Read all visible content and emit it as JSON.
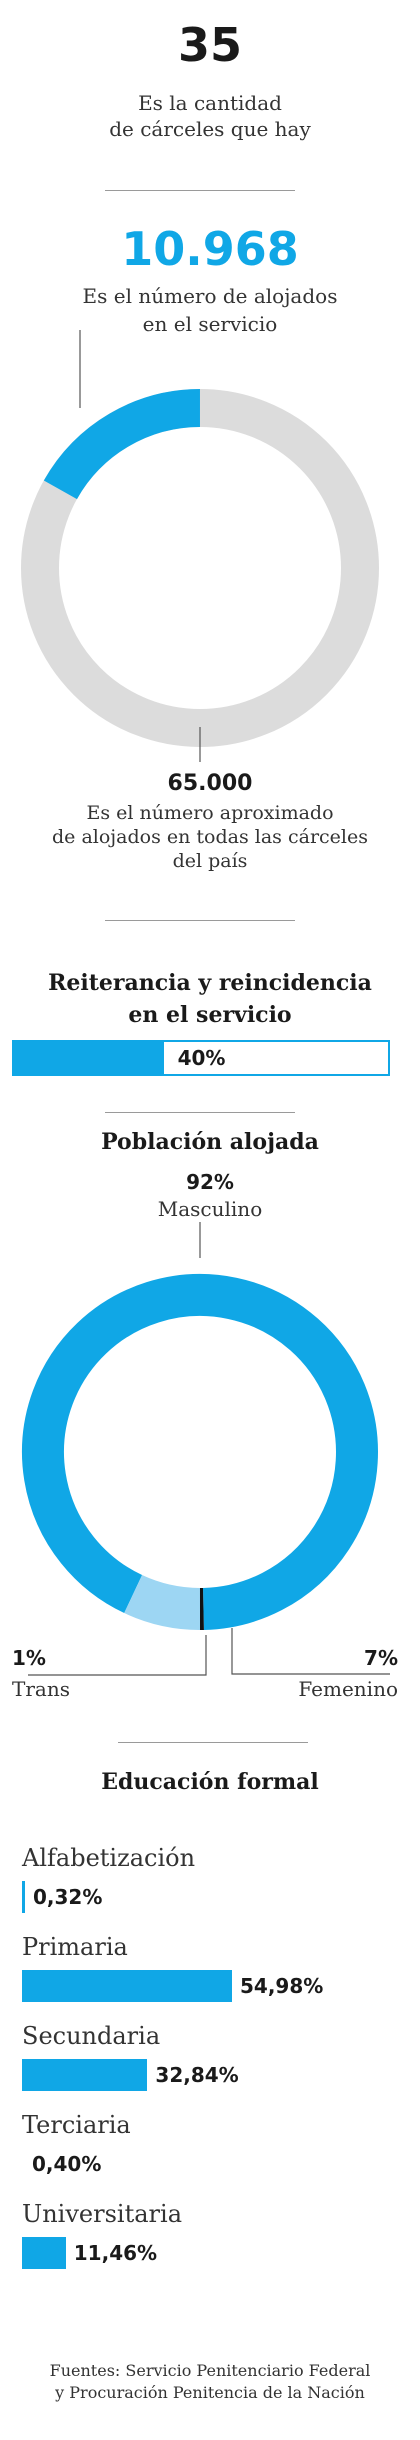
{
  "prisons": {
    "number": "35",
    "caption_line1": "Es la cantidad",
    "caption_line2": "de cárceles que hay"
  },
  "inmates": {
    "number": "10.968",
    "caption_line1": "Es el número de alojados",
    "caption_line2": "en el servicio"
  },
  "national": {
    "number": "65.000",
    "caption_line1": "Es el número aproximado",
    "caption_line2": "de alojados en todas las cárceles",
    "caption_line3": "del país"
  },
  "recidivism": {
    "title_line1": "Reiterancia y reincidencia",
    "title_line2": "en el servicio",
    "value_label": "40%",
    "value": 40
  },
  "population": {
    "title": "Población alojada",
    "male": {
      "percent": "92%",
      "label": "Masculino"
    },
    "female": {
      "percent": "7%",
      "label": "Femenino"
    },
    "trans": {
      "percent": "1%",
      "label": "Trans"
    }
  },
  "education": {
    "title": "Educación formal",
    "items": [
      {
        "label": "Alfabetización",
        "value_label": "0,32%"
      },
      {
        "label": "Primaria",
        "value_label": "54,98%"
      },
      {
        "label": "Secundaria",
        "value_label": "32,84%"
      },
      {
        "label": "Terciaria",
        "value_label": "0,40%"
      },
      {
        "label": "Universitaria",
        "value_label": "11,46%"
      }
    ]
  },
  "sources": {
    "line1": "Fuentes: Servicio Penitenciario Federal",
    "line2": "y Procuración Penitencia de la Nación"
  },
  "colors": {
    "accent": "#10a7e6",
    "light_accent": "#9dd6f3",
    "gray_ring": "#dcdcdc",
    "trans": "#111111"
  },
  "chart_data": [
    {
      "type": "pie",
      "categories": [
        "10.968",
        "65.000"
      ],
      "values": [
        10968,
        54032
      ]
    },
    {
      "type": "bar",
      "title": "Reiterancia y reincidencia en el servicio",
      "categories": [
        "Reiterancia y reincidencia"
      ],
      "values": [
        40
      ],
      "ylim": [
        0,
        100
      ]
    },
    {
      "type": "pie",
      "title": "Población alojada",
      "categories": [
        "Masculino",
        "Femenino",
        "Trans"
      ],
      "values": [
        92,
        7,
        1
      ]
    },
    {
      "type": "bar",
      "title": "Educación formal",
      "categories": [
        "Alfabetización",
        "Primaria",
        "Secundaria",
        "Terciaria",
        "Universitaria"
      ],
      "values": [
        0.32,
        54.98,
        32.84,
        0.4,
        11.46
      ]
    }
  ]
}
